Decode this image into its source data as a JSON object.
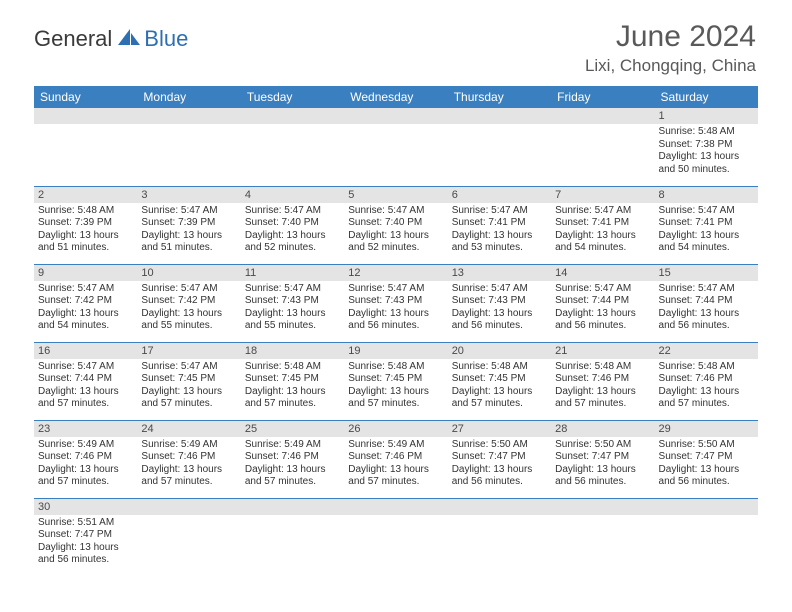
{
  "logo": {
    "general": "General",
    "blue": "Blue",
    "icon_color": "#2d6fb3"
  },
  "title": "June 2024",
  "location": "Lixi, Chongqing, China",
  "day_headers": [
    "Sunday",
    "Monday",
    "Tuesday",
    "Wednesday",
    "Thursday",
    "Friday",
    "Saturday"
  ],
  "colors": {
    "header_bg": "#3a7fbf",
    "header_text": "#ffffff",
    "daybar_bg": "#e4e4e4",
    "cell_border": "#3a7fbf",
    "text": "#333333"
  },
  "weeks": [
    [
      null,
      null,
      null,
      null,
      null,
      null,
      {
        "n": "1",
        "sunrise": "Sunrise: 5:48 AM",
        "sunset": "Sunset: 7:38 PM",
        "daylight": "Daylight: 13 hours and 50 minutes."
      }
    ],
    [
      {
        "n": "2",
        "sunrise": "Sunrise: 5:48 AM",
        "sunset": "Sunset: 7:39 PM",
        "daylight": "Daylight: 13 hours and 51 minutes."
      },
      {
        "n": "3",
        "sunrise": "Sunrise: 5:47 AM",
        "sunset": "Sunset: 7:39 PM",
        "daylight": "Daylight: 13 hours and 51 minutes."
      },
      {
        "n": "4",
        "sunrise": "Sunrise: 5:47 AM",
        "sunset": "Sunset: 7:40 PM",
        "daylight": "Daylight: 13 hours and 52 minutes."
      },
      {
        "n": "5",
        "sunrise": "Sunrise: 5:47 AM",
        "sunset": "Sunset: 7:40 PM",
        "daylight": "Daylight: 13 hours and 52 minutes."
      },
      {
        "n": "6",
        "sunrise": "Sunrise: 5:47 AM",
        "sunset": "Sunset: 7:41 PM",
        "daylight": "Daylight: 13 hours and 53 minutes."
      },
      {
        "n": "7",
        "sunrise": "Sunrise: 5:47 AM",
        "sunset": "Sunset: 7:41 PM",
        "daylight": "Daylight: 13 hours and 54 minutes."
      },
      {
        "n": "8",
        "sunrise": "Sunrise: 5:47 AM",
        "sunset": "Sunset: 7:41 PM",
        "daylight": "Daylight: 13 hours and 54 minutes."
      }
    ],
    [
      {
        "n": "9",
        "sunrise": "Sunrise: 5:47 AM",
        "sunset": "Sunset: 7:42 PM",
        "daylight": "Daylight: 13 hours and 54 minutes."
      },
      {
        "n": "10",
        "sunrise": "Sunrise: 5:47 AM",
        "sunset": "Sunset: 7:42 PM",
        "daylight": "Daylight: 13 hours and 55 minutes."
      },
      {
        "n": "11",
        "sunrise": "Sunrise: 5:47 AM",
        "sunset": "Sunset: 7:43 PM",
        "daylight": "Daylight: 13 hours and 55 minutes."
      },
      {
        "n": "12",
        "sunrise": "Sunrise: 5:47 AM",
        "sunset": "Sunset: 7:43 PM",
        "daylight": "Daylight: 13 hours and 56 minutes."
      },
      {
        "n": "13",
        "sunrise": "Sunrise: 5:47 AM",
        "sunset": "Sunset: 7:43 PM",
        "daylight": "Daylight: 13 hours and 56 minutes."
      },
      {
        "n": "14",
        "sunrise": "Sunrise: 5:47 AM",
        "sunset": "Sunset: 7:44 PM",
        "daylight": "Daylight: 13 hours and 56 minutes."
      },
      {
        "n": "15",
        "sunrise": "Sunrise: 5:47 AM",
        "sunset": "Sunset: 7:44 PM",
        "daylight": "Daylight: 13 hours and 56 minutes."
      }
    ],
    [
      {
        "n": "16",
        "sunrise": "Sunrise: 5:47 AM",
        "sunset": "Sunset: 7:44 PM",
        "daylight": "Daylight: 13 hours and 57 minutes."
      },
      {
        "n": "17",
        "sunrise": "Sunrise: 5:47 AM",
        "sunset": "Sunset: 7:45 PM",
        "daylight": "Daylight: 13 hours and 57 minutes."
      },
      {
        "n": "18",
        "sunrise": "Sunrise: 5:48 AM",
        "sunset": "Sunset: 7:45 PM",
        "daylight": "Daylight: 13 hours and 57 minutes."
      },
      {
        "n": "19",
        "sunrise": "Sunrise: 5:48 AM",
        "sunset": "Sunset: 7:45 PM",
        "daylight": "Daylight: 13 hours and 57 minutes."
      },
      {
        "n": "20",
        "sunrise": "Sunrise: 5:48 AM",
        "sunset": "Sunset: 7:45 PM",
        "daylight": "Daylight: 13 hours and 57 minutes."
      },
      {
        "n": "21",
        "sunrise": "Sunrise: 5:48 AM",
        "sunset": "Sunset: 7:46 PM",
        "daylight": "Daylight: 13 hours and 57 minutes."
      },
      {
        "n": "22",
        "sunrise": "Sunrise: 5:48 AM",
        "sunset": "Sunset: 7:46 PM",
        "daylight": "Daylight: 13 hours and 57 minutes."
      }
    ],
    [
      {
        "n": "23",
        "sunrise": "Sunrise: 5:49 AM",
        "sunset": "Sunset: 7:46 PM",
        "daylight": "Daylight: 13 hours and 57 minutes."
      },
      {
        "n": "24",
        "sunrise": "Sunrise: 5:49 AM",
        "sunset": "Sunset: 7:46 PM",
        "daylight": "Daylight: 13 hours and 57 minutes."
      },
      {
        "n": "25",
        "sunrise": "Sunrise: 5:49 AM",
        "sunset": "Sunset: 7:46 PM",
        "daylight": "Daylight: 13 hours and 57 minutes."
      },
      {
        "n": "26",
        "sunrise": "Sunrise: 5:49 AM",
        "sunset": "Sunset: 7:46 PM",
        "daylight": "Daylight: 13 hours and 57 minutes."
      },
      {
        "n": "27",
        "sunrise": "Sunrise: 5:50 AM",
        "sunset": "Sunset: 7:47 PM",
        "daylight": "Daylight: 13 hours and 56 minutes."
      },
      {
        "n": "28",
        "sunrise": "Sunrise: 5:50 AM",
        "sunset": "Sunset: 7:47 PM",
        "daylight": "Daylight: 13 hours and 56 minutes."
      },
      {
        "n": "29",
        "sunrise": "Sunrise: 5:50 AM",
        "sunset": "Sunset: 7:47 PM",
        "daylight": "Daylight: 13 hours and 56 minutes."
      }
    ],
    [
      {
        "n": "30",
        "sunrise": "Sunrise: 5:51 AM",
        "sunset": "Sunset: 7:47 PM",
        "daylight": "Daylight: 13 hours and 56 minutes."
      },
      null,
      null,
      null,
      null,
      null,
      null
    ]
  ]
}
